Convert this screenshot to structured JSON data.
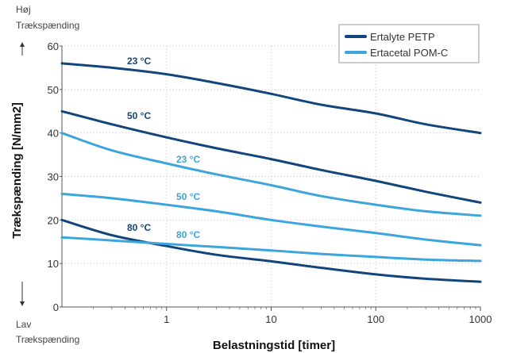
{
  "chart_data": {
    "type": "line",
    "xlabel": "Belastningstid [timer]",
    "ylabel": "Trækspænding [N/mm2]",
    "x_scale": "log",
    "xlim": [
      0.1,
      1000
    ],
    "ylim": [
      0,
      60
    ],
    "x_ticks": [
      "1",
      "10",
      "100",
      "1000"
    ],
    "y_ticks": [
      "0",
      "10",
      "20",
      "30",
      "40",
      "50",
      "60"
    ],
    "grid": "dotted",
    "top_label": [
      "Høj",
      "Trækspænding"
    ],
    "bottom_label": [
      "Lav",
      "Trækspænding"
    ],
    "legend": {
      "position": "top-right",
      "entries": [
        {
          "name": "Ertalyte PETP",
          "color": "#12457c"
        },
        {
          "name": "Ertacetal POM-C",
          "color": "#3ba5dc"
        }
      ]
    },
    "series": [
      {
        "name": "Ertalyte PETP",
        "label": "23 °C",
        "color": "#12457c",
        "x": [
          0.1,
          0.3,
          1,
          3,
          10,
          30,
          100,
          300,
          1000
        ],
        "y": [
          56,
          55,
          53.5,
          51.5,
          49,
          46.5,
          44.5,
          42,
          40
        ]
      },
      {
        "name": "Ertalyte PETP",
        "label": "50 °C",
        "color": "#12457c",
        "x": [
          0.1,
          0.3,
          1,
          3,
          10,
          30,
          100,
          300,
          1000
        ],
        "y": [
          45,
          42,
          39,
          36.5,
          34,
          31.5,
          29,
          26.5,
          24
        ]
      },
      {
        "name": "Ertalyte PETP",
        "label": "80 °C",
        "color": "#12457c",
        "x": [
          0.1,
          0.3,
          1,
          3,
          10,
          30,
          100,
          300,
          1000
        ],
        "y": [
          20,
          16.5,
          14,
          12,
          10.5,
          9,
          7.5,
          6.5,
          5.8
        ]
      },
      {
        "name": "Ertacetal POM-C",
        "label": "23 °C",
        "color": "#3ba5dc",
        "x": [
          0.1,
          0.3,
          1,
          3,
          10,
          30,
          100,
          300,
          1000
        ],
        "y": [
          40,
          36,
          33,
          30.5,
          28,
          25.5,
          23.5,
          22,
          21
        ]
      },
      {
        "name": "Ertacetal POM-C",
        "label": "50 °C",
        "color": "#3ba5dc",
        "x": [
          0.1,
          0.3,
          1,
          3,
          10,
          30,
          100,
          300,
          1000
        ],
        "y": [
          26,
          25,
          23.5,
          22,
          20,
          18.5,
          17,
          15.5,
          14.2
        ]
      },
      {
        "name": "Ertacetal POM-C",
        "label": "80 °C",
        "color": "#3ba5dc",
        "x": [
          0.1,
          0.3,
          1,
          3,
          10,
          30,
          100,
          300,
          1000
        ],
        "y": [
          16,
          15.3,
          14.5,
          13.8,
          13,
          12.2,
          11.5,
          10.9,
          10.6
        ]
      }
    ]
  }
}
